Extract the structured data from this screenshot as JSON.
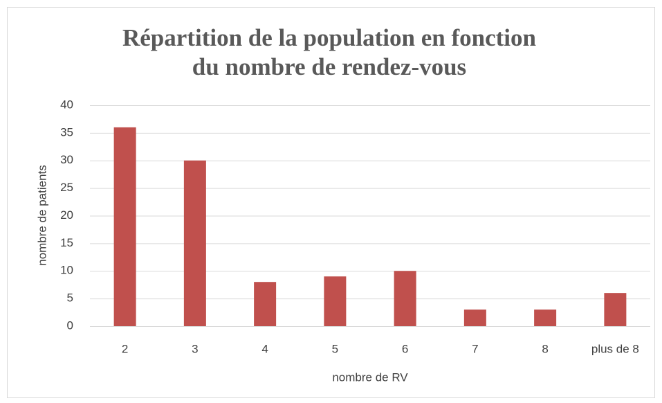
{
  "chart_data": {
    "type": "bar",
    "title": [
      "Répartition de la population en fonction",
      "du nombre de rendez-vous"
    ],
    "x_label": "nombre de RV",
    "y_label": "nombre de patients",
    "categories": [
      "2",
      "3",
      "4",
      "5",
      "6",
      "7",
      "8",
      "plus de 8"
    ],
    "values": [
      36,
      30,
      8,
      9,
      10,
      3,
      3,
      6
    ],
    "color": "#c0504d",
    "ylim": [
      0,
      40
    ],
    "yticks": [
      0,
      5,
      10,
      15,
      20,
      25,
      30,
      35,
      40
    ],
    "grid": true
  }
}
